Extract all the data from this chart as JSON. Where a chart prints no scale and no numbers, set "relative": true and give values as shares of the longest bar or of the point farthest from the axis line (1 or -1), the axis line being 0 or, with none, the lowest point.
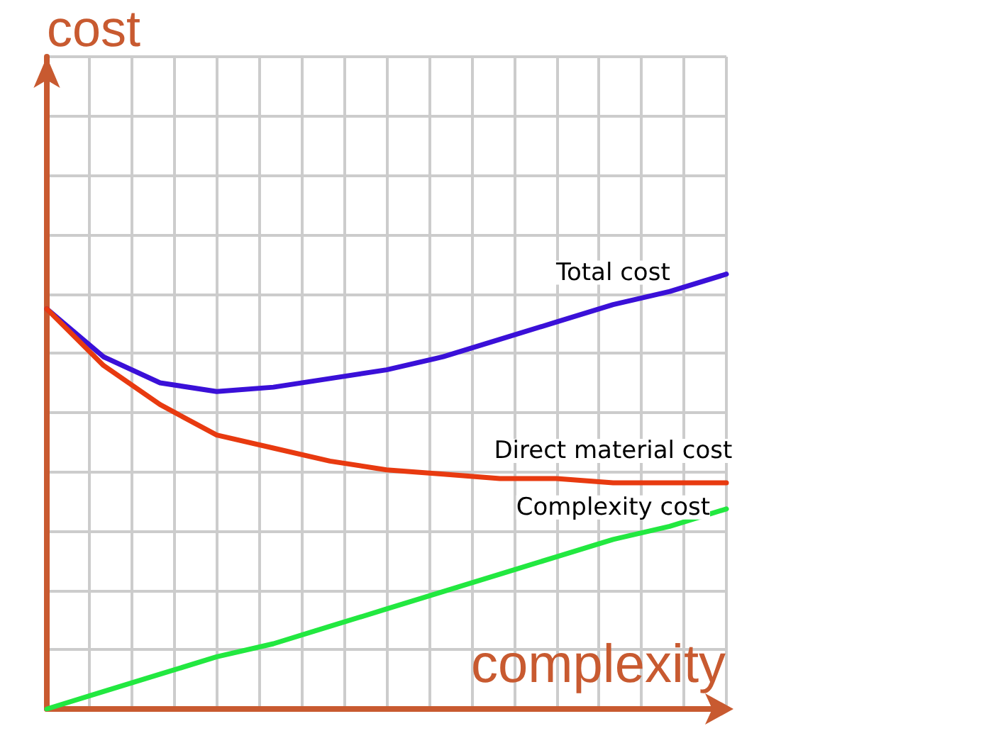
{
  "chart_data": {
    "type": "line",
    "relative": true,
    "xlabel": "complexity",
    "ylabel": "cost",
    "grid": true,
    "legend": false,
    "marker": "none",
    "line_style": "solid",
    "categories": [
      null,
      null,
      null,
      null,
      null,
      null,
      null,
      null,
      null,
      null,
      null,
      null,
      null
    ],
    "series": [
      {
        "name": "Total cost",
        "color": "#3a10d8",
        "values": [
          0.92,
          0.81,
          0.75,
          0.73,
          0.74,
          0.76,
          0.78,
          0.81,
          0.85,
          0.89,
          0.93,
          0.96,
          1
        ]
      },
      {
        "name": "Direct material cost",
        "color": "#e83a10",
        "values": [
          0.92,
          0.79,
          0.7,
          0.63,
          0.6,
          0.57,
          0.55,
          0.54,
          0.53,
          0.53,
          0.52,
          0.52,
          0.52
        ]
      },
      {
        "name": "Complexity cost",
        "color": "#22e840",
        "values": [
          0,
          0.04,
          0.08,
          0.12,
          0.15,
          0.19,
          0.23,
          0.27,
          0.31,
          0.35,
          0.39,
          0.42,
          0.46
        ]
      }
    ]
  }
}
